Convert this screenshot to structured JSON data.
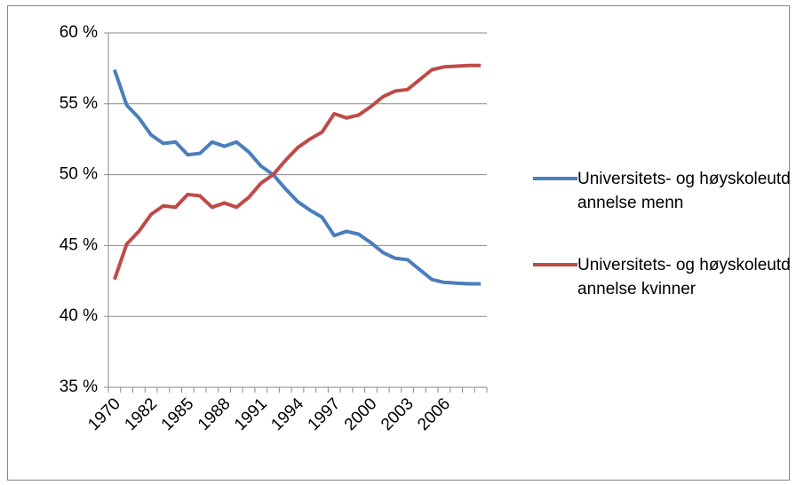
{
  "chart_data": {
    "type": "line",
    "categories": [
      "1970",
      null,
      null,
      "1982",
      null,
      null,
      "1985",
      null,
      null,
      "1988",
      null,
      null,
      "1991",
      null,
      null,
      "1994",
      null,
      null,
      "1997",
      null,
      null,
      "2000",
      null,
      null,
      "2003",
      null,
      null,
      "2006",
      null,
      null,
      null
    ],
    "series": [
      {
        "name": "Universitets- og høyskoleutdannelse menn",
        "color": "#4a7ebb",
        "values": [
          57.4,
          54.9,
          54.0,
          52.8,
          52.2,
          52.3,
          51.4,
          51.5,
          52.3,
          52.0,
          52.3,
          51.6,
          50.6,
          50.0,
          49.0,
          48.1,
          47.5,
          47.0,
          45.7,
          46.0,
          45.8,
          45.2,
          44.5,
          44.1,
          44.0,
          43.3,
          42.6,
          42.4,
          42.35,
          42.3,
          42.3
        ]
      },
      {
        "name": "Universitets- og høyskoleutdannelse kvinner",
        "color": "#be4b48",
        "values": [
          42.6,
          45.1,
          46.0,
          47.2,
          47.8,
          47.7,
          48.6,
          48.5,
          47.7,
          48.0,
          47.7,
          48.4,
          49.4,
          50.0,
          51.0,
          51.9,
          52.5,
          53.0,
          54.3,
          54.0,
          54.2,
          54.8,
          55.5,
          55.9,
          56.0,
          56.7,
          57.4,
          57.6,
          57.65,
          57.7,
          57.7
        ]
      }
    ],
    "ylim": [
      35,
      60
    ],
    "yticks": [
      {
        "value": 35,
        "label": "35 %"
      },
      {
        "value": 40,
        "label": "40 %"
      },
      {
        "value": 45,
        "label": "45 %"
      },
      {
        "value": 50,
        "label": "50 %"
      },
      {
        "value": 55,
        "label": "55 %"
      },
      {
        "value": 60,
        "label": "60 %"
      }
    ],
    "grid": true,
    "legend": "right"
  }
}
